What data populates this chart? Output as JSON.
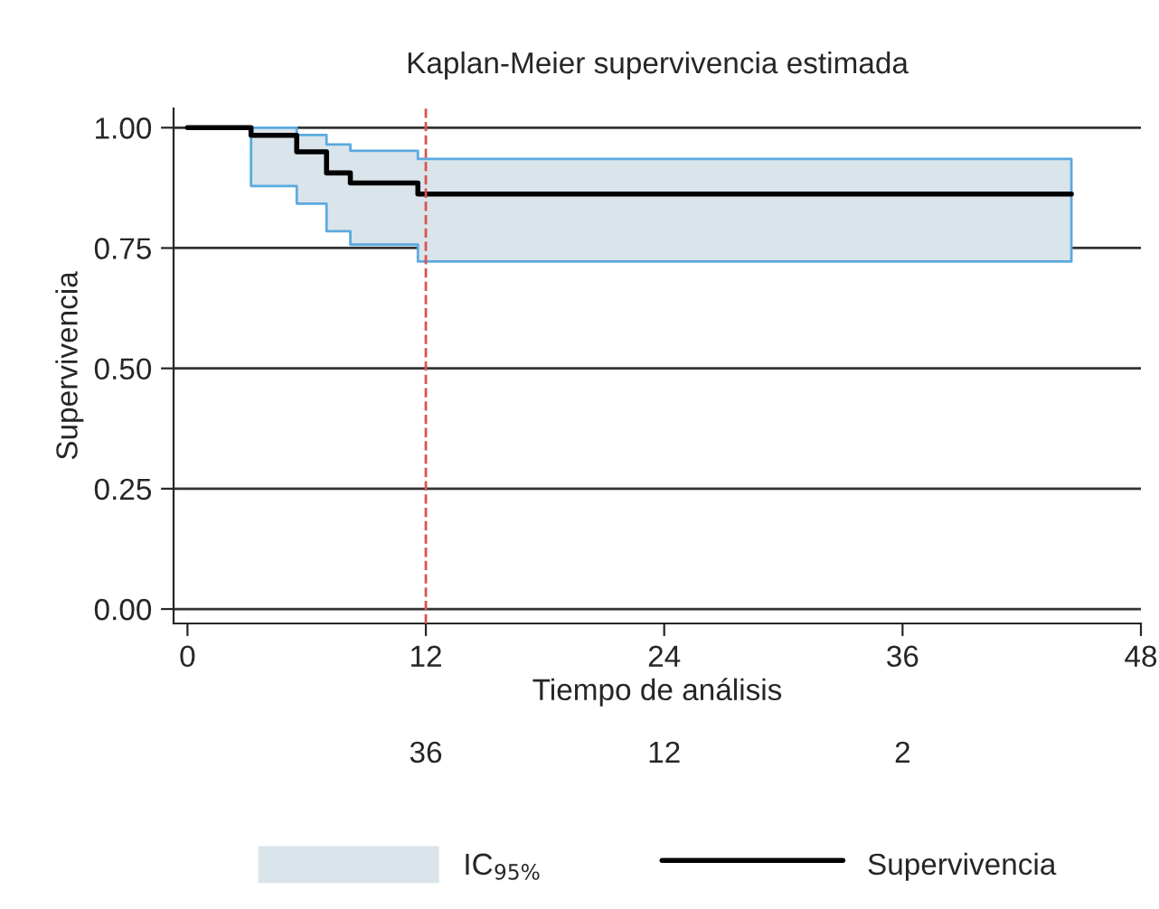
{
  "chart_data": {
    "type": "step",
    "title": "Kaplan-Meier supervivencia estimada",
    "xlabel": "Tiempo de análisis",
    "ylabel": "Supervivencia",
    "series": [
      {
        "name": "Supervivencia",
        "color": "#000000",
        "x": [
          0,
          3.2,
          5.5,
          7.0,
          8.2,
          11.6,
          44.5
        ],
        "values": [
          1.0,
          0.984,
          0.95,
          0.906,
          0.885,
          0.862,
          0.862
        ],
        "lower": [
          null,
          0.879,
          0.842,
          0.785,
          0.757,
          0.722,
          0.722
        ],
        "upper": [
          null,
          1.0,
          0.985,
          0.965,
          0.952,
          0.935,
          0.935
        ]
      }
    ],
    "xlim": [
      -0.7,
      48
    ],
    "xticks": [
      0,
      12,
      24,
      36,
      48
    ],
    "ylim": [
      -0.03,
      1.04
    ],
    "yticks": [
      {
        "value": 0,
        "label": "0.00"
      },
      {
        "value": 0.25,
        "label": "0.25"
      },
      {
        "value": 0.5,
        "label": "0.50"
      },
      {
        "value": 0.75,
        "label": "0.75"
      },
      {
        "value": 1,
        "label": "1.00"
      }
    ],
    "grid": "y",
    "legend": "bottom",
    "line_style": "solid",
    "ref_lines": [
      {
        "axis": "x",
        "value": 12,
        "color": "#d9534f",
        "line_style": "dashed"
      }
    ],
    "annotations": [
      "IC$_{95%}$",
      "36",
      "12",
      "2"
    ]
  }
}
